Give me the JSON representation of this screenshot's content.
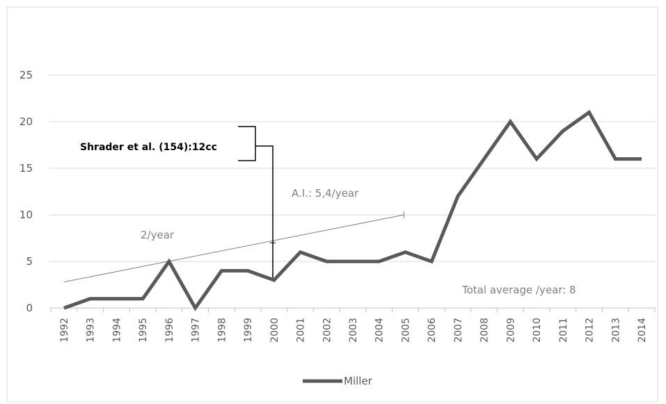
{
  "chart_data": {
    "type": "line",
    "x": [
      "1992",
      "1993",
      "1994",
      "1995",
      "1996",
      "1997",
      "1998",
      "1999",
      "2000",
      "2001",
      "2002",
      "2003",
      "2004",
      "2005",
      "2006",
      "2007",
      "2008",
      "2009",
      "2010",
      "2011",
      "2012",
      "2013",
      "2014"
    ],
    "series": [
      {
        "name": "Miller",
        "color": "#595959",
        "values": [
          0,
          1,
          1,
          1,
          5,
          0,
          4,
          4,
          3,
          6,
          5,
          5,
          5,
          6,
          5,
          12,
          16,
          20,
          16,
          19,
          21,
          16,
          16
        ]
      }
    ],
    "yticks": [
      "0",
      "5",
      "10",
      "15",
      "20",
      "25"
    ],
    "ylim": [
      0,
      25
    ],
    "grid": true,
    "legend_position": "bottom",
    "trendline": {
      "from": [
        "1992",
        2.8
      ],
      "to": [
        "2005",
        10
      ]
    },
    "annotations": {
      "rate_2": "2/year",
      "rate_ai": "A.I.: 5,4/year",
      "total_avg": "Total average /year: 8",
      "callout": "Shrader et al. (154):12cc"
    }
  }
}
